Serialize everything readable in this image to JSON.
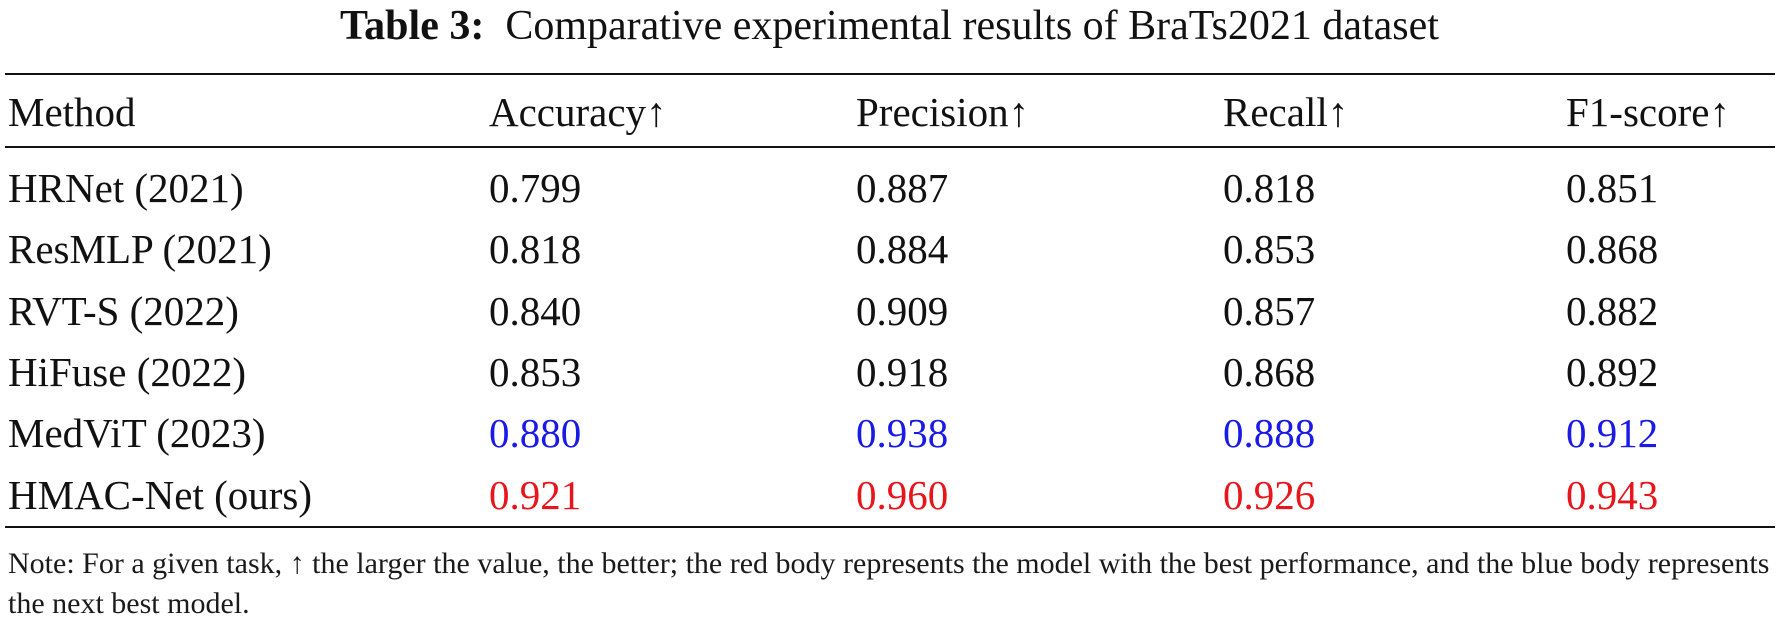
{
  "caption": {
    "label": "Table 3:",
    "text": "Comparative experimental results of BraTs2021 dataset"
  },
  "table": {
    "columns": [
      "Method",
      "Accuracy↑",
      "Precision↑",
      "Recall↑",
      "F1-score↑"
    ],
    "rows": [
      {
        "method": "HRNet (2021)",
        "values": [
          "0.799",
          "0.887",
          "0.818",
          "0.851"
        ],
        "highlight": "none"
      },
      {
        "method": "ResMLP (2021)",
        "values": [
          "0.818",
          "0.884",
          "0.853",
          "0.868"
        ],
        "highlight": "none"
      },
      {
        "method": "RVT-S (2022)",
        "values": [
          "0.840",
          "0.909",
          "0.857",
          "0.882"
        ],
        "highlight": "none"
      },
      {
        "method": "HiFuse (2022)",
        "values": [
          "0.853",
          "0.918",
          "0.868",
          "0.892"
        ],
        "highlight": "none"
      },
      {
        "method": "MedViT (2023)",
        "values": [
          "0.880",
          "0.938",
          "0.888",
          "0.912"
        ],
        "highlight": "second-best"
      },
      {
        "method": "HMAC-Net (ours)",
        "values": [
          "0.921",
          "0.960",
          "0.926",
          "0.943"
        ],
        "highlight": "best"
      }
    ]
  },
  "colors": {
    "text": "#111111",
    "best": "#e8161c",
    "second_best": "#1a1ae6"
  },
  "note": "Note: For a given task, ↑ the larger the value, the better; the red body represents the model with the best performance, and the blue body represents the next best model."
}
